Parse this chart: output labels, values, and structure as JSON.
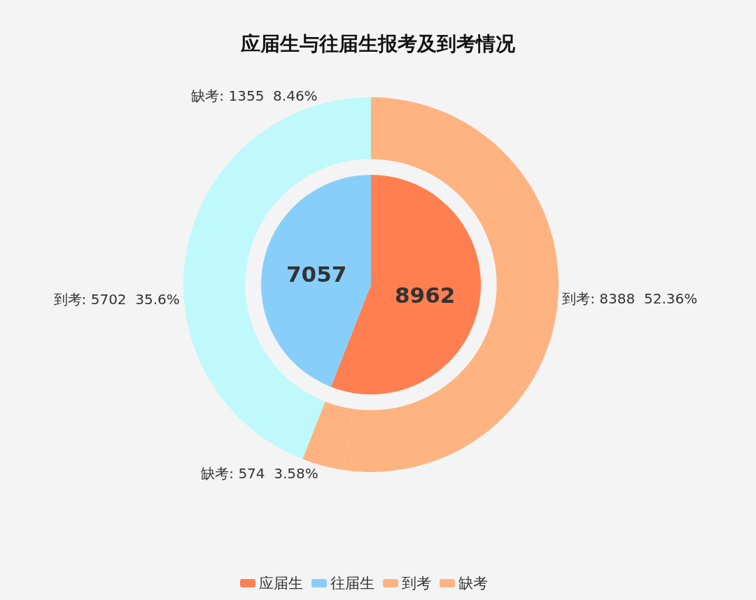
{
  "chart_data": [
    {
      "type": "pie",
      "title": "应届生与往届生报考及到考情况",
      "categories": [
        "应届生",
        "往届生"
      ],
      "values": [
        8962,
        7057
      ],
      "colors": [
        "#ff7f50",
        "#87cefa"
      ],
      "data_labels": true,
      "legend": "bottom"
    },
    {
      "type": "donut",
      "categories": [
        "到考",
        "缺考",
        "到考",
        "缺考"
      ],
      "values": [
        8388,
        574,
        5702,
        1355
      ],
      "colors": [
        "#ffb380",
        "#ffb380",
        "#bff9fb",
        "#bff9fb"
      ],
      "value_labels": [
        ": 8388  52.36%",
        ": 574  3.58%",
        ": 5702  35.6%",
        ": 1355  8.46%"
      ],
      "legend": "bottom"
    }
  ]
}
